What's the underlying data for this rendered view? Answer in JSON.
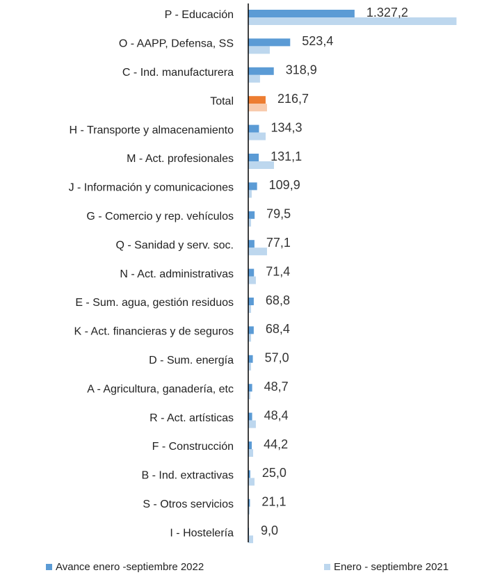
{
  "chart_data": {
    "type": "hbar",
    "categories": [
      "P - Educación",
      "O - AAPP, Defensa, SS",
      "C - Ind. manufacturera",
      "Total",
      "H - Transporte y almacenamiento",
      "M - Act. profesionales",
      "J - Información y comunicaciones",
      "G - Comercio y rep. vehículos",
      "Q - Sanidad y serv. soc.",
      "N - Act. administrativas",
      "E - Sum. agua, gestión residuos",
      "K - Act. financieras y de seguros",
      "D - Sum. energía",
      "A - Agricultura, ganadería, etc",
      "R - Act. artísticas",
      "F - Construcción",
      "B - Ind. extractivas",
      "S - Otros servicios",
      "I - Hostelería"
    ],
    "series": [
      {
        "name": "Avance enero -septiembre 2022",
        "color": "#5b9bd5",
        "highlight_color": "#ed7d31",
        "values": [
          1327.2,
          523.4,
          318.9,
          216.7,
          134.3,
          131.1,
          109.9,
          79.5,
          77.1,
          71.4,
          68.8,
          68.4,
          57.0,
          48.7,
          48.4,
          44.2,
          25.0,
          21.1,
          9.0
        ],
        "value_labels": [
          "1.327,2",
          "523,4",
          "318,9",
          "216,7",
          "134,3",
          "131,1",
          "109,9",
          "79,5",
          "77,1",
          "71,4",
          "68,8",
          "68,4",
          "57,0",
          "48,7",
          "48,4",
          "44,2",
          "25,0",
          "21,1",
          "9,0"
        ]
      },
      {
        "name": "Enero - septiembre 2021",
        "color": "#bdd7ee",
        "highlight_color": "#f8cbad",
        "values": [
          2600,
          269,
          147,
          234,
          217,
          321,
          43,
          35,
          234,
          95,
          35,
          35,
          35,
          26,
          95,
          61,
          78,
          17,
          61
        ]
      }
    ],
    "highlight_index": 3,
    "xlim": [
      0,
      2900
    ],
    "legend": "bottom"
  }
}
